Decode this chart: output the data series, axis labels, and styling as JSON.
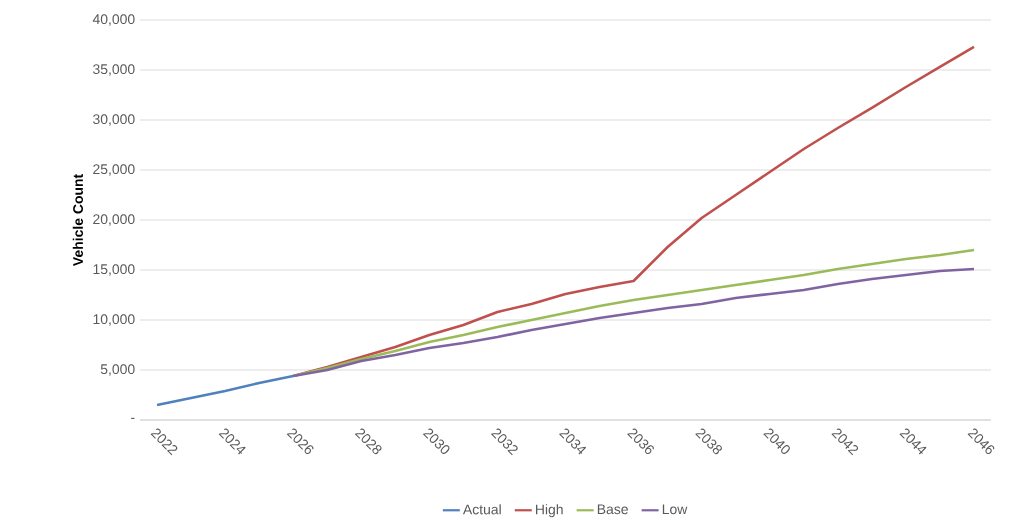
{
  "chart_data": {
    "type": "line",
    "ylabel": "Vehicle Count",
    "x": [
      2022,
      2023,
      2024,
      2025,
      2026,
      2027,
      2028,
      2029,
      2030,
      2031,
      2032,
      2033,
      2034,
      2035,
      2036,
      2037,
      2038,
      2039,
      2040,
      2041,
      2042,
      2043,
      2044,
      2045,
      2046
    ],
    "series": [
      {
        "name": "Actual",
        "color": "#4f81bd",
        "values": [
          1500,
          2200,
          2900,
          3700,
          4400,
          null,
          null,
          null,
          null,
          null,
          null,
          null,
          null,
          null,
          null,
          null,
          null,
          null,
          null,
          null,
          null,
          null,
          null,
          null,
          null
        ]
      },
      {
        "name": "High",
        "color": "#c0504d",
        "values": [
          null,
          null,
          null,
          null,
          4400,
          5300,
          6300,
          7300,
          8500,
          9500,
          10800,
          11600,
          12600,
          13300,
          13900,
          17300,
          20200,
          22500,
          24800,
          27100,
          29200,
          31200,
          33300,
          35300,
          37300
        ]
      },
      {
        "name": "Base",
        "color": "#9bbb59",
        "values": [
          null,
          null,
          null,
          null,
          4400,
          5200,
          6100,
          6900,
          7800,
          8500,
          9300,
          10000,
          10700,
          11400,
          12000,
          12500,
          13000,
          13500,
          14000,
          14500,
          15100,
          15600,
          16100,
          16500,
          17000
        ]
      },
      {
        "name": "Low",
        "color": "#8064a2",
        "values": [
          null,
          null,
          null,
          null,
          4400,
          5000,
          5900,
          6500,
          7200,
          7700,
          8300,
          9000,
          9600,
          10200,
          10700,
          11200,
          11600,
          12200,
          12600,
          13000,
          13600,
          14100,
          14500,
          14900,
          15100
        ]
      }
    ],
    "xlim": [
      2021.5,
      2046.5
    ],
    "xticks": [
      2022,
      2024,
      2026,
      2028,
      2030,
      2032,
      2034,
      2036,
      2038,
      2040,
      2042,
      2044,
      2046
    ],
    "ylim": [
      0,
      40000
    ],
    "yticks": [
      {
        "value": 0,
        "label": "-"
      },
      {
        "value": 5000,
        "label": "5,000"
      },
      {
        "value": 10000,
        "label": "10,000"
      },
      {
        "value": 15000,
        "label": "15,000"
      },
      {
        "value": 20000,
        "label": "20,000"
      },
      {
        "value": 25000,
        "label": "25,000"
      },
      {
        "value": 30000,
        "label": "30,000"
      },
      {
        "value": 35000,
        "label": "35,000"
      },
      {
        "value": 40000,
        "label": "40,000"
      }
    ],
    "grid": "y",
    "legend": "bottom",
    "marker": "none",
    "line_style": "solid"
  }
}
